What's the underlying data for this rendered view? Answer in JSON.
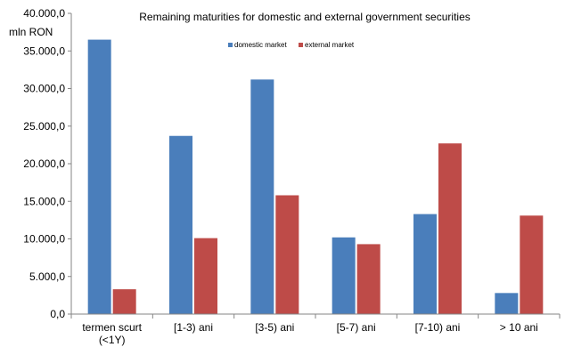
{
  "chart_data": {
    "type": "bar",
    "title": "Remaining maturities for domestic and external government securities",
    "ylabel": "mln RON",
    "xlabel": "",
    "ylim": [
      0,
      40000
    ],
    "yticks": [
      0,
      5000,
      10000,
      15000,
      20000,
      25000,
      30000,
      35000,
      40000
    ],
    "ytick_labels": [
      "0,0",
      "5.000,0",
      "10.000,0",
      "15.000,0",
      "20.000,0",
      "25.000,0",
      "30.000,0",
      "35.000,0",
      "40.000,0"
    ],
    "categories": [
      "termen scurt (<1Y)",
      "[1-3) ani",
      "[3-5) ani",
      "[5-7) ani",
      "[7-10) ani",
      "> 10 ani"
    ],
    "category_lines": [
      [
        "termen scurt",
        "(<1Y)"
      ],
      [
        "[1-3) ani"
      ],
      [
        "[3-5) ani"
      ],
      [
        "[5-7) ani"
      ],
      [
        "[7-10) ani"
      ],
      [
        "> 10 ani"
      ]
    ],
    "series": [
      {
        "name": "domestic market",
        "color": "#4a7ebb",
        "values": [
          36500,
          23700,
          31200,
          10200,
          13300,
          2800
        ]
      },
      {
        "name": "external market",
        "color": "#be4b48",
        "values": [
          3300,
          10100,
          15800,
          9300,
          22700,
          13100
        ]
      }
    ],
    "legend_position": "top",
    "grid": false
  }
}
